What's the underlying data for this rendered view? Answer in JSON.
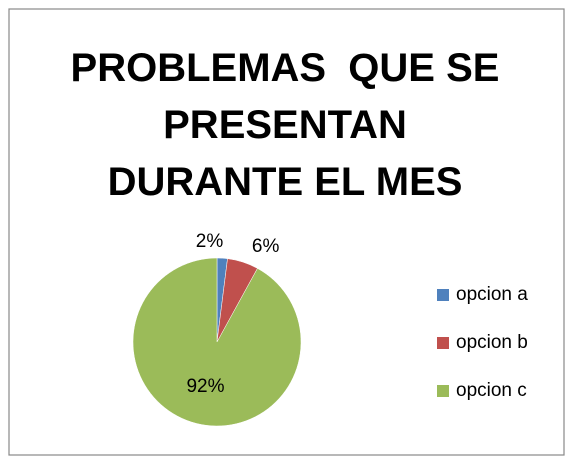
{
  "chart_data": {
    "type": "pie",
    "title": "PROBLEMAS  QUE SE PRESENTAN DURANTE EL MES",
    "categories": [
      "opcion a",
      "opcion b",
      "opcion c"
    ],
    "values": [
      2,
      6,
      92
    ],
    "value_labels": [
      "2%",
      "6%",
      "92%"
    ],
    "colors": [
      "#4f81bd",
      "#c0504d",
      "#9bbb59"
    ],
    "legend": "right"
  }
}
